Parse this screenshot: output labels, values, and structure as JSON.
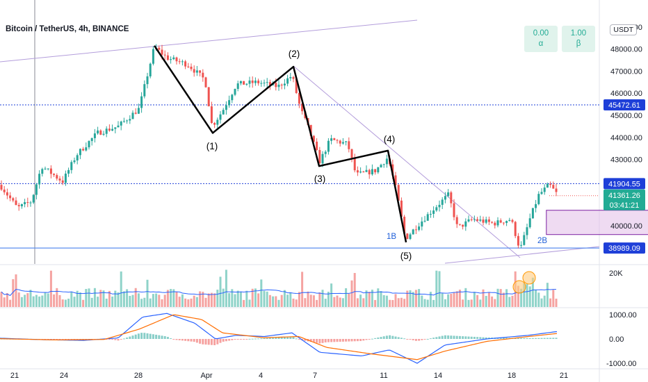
{
  "title": "Bitcoin / TetherUS, 4h, BINANCE",
  "currency": "USDT",
  "indicators": [
    {
      "value": "0.00",
      "letter": "α"
    },
    {
      "value": "1.00",
      "letter": "β"
    }
  ],
  "colors": {
    "up": "#26a69a",
    "down": "#ef5350",
    "level_line": "#1e3fd8",
    "support_line": "#5b8def",
    "macd_line": "#2962ff",
    "signal_line": "#ff6d00",
    "volume_ma": "#2962ff",
    "range_box": "#e1bee7",
    "label_price": "#1e3fd8",
    "label_current": "#22ab94"
  },
  "chart_data": [
    {
      "type": "candlestick",
      "symbol": "Bitcoin / TetherUS",
      "interval": "4h",
      "exchange": "BINANCE",
      "x_ticks": [
        "21",
        "24",
        "28",
        "Apr",
        "4",
        "7",
        "11",
        "14",
        "18",
        "21"
      ],
      "y_ticks": [
        "40000.00",
        "41000.00",
        "42000.00",
        "43000.00",
        "44000.00",
        "45000.00",
        "46000.00",
        "47000.00",
        "48000.00",
        "49000.00"
      ],
      "price_labels": [
        "45472.61",
        "41904.55",
        "38989.09"
      ],
      "current_price": "41361.26",
      "countdown": "03:41:21",
      "wave_labels": [
        "(1)",
        "(2)",
        "(3)",
        "(4)",
        "(5)"
      ],
      "pattern_labels": [
        "1B",
        "2B"
      ],
      "waves": [
        {
          "x": "Mar 28",
          "y": 48150
        },
        {
          "x": "Mar 31",
          "y": 44200
        },
        {
          "x": "Apr 5",
          "y": 47200
        },
        {
          "x": "Apr 7",
          "y": 42700
        },
        {
          "x": "Apr 11",
          "y": 43400
        },
        {
          "x": "Apr 12",
          "y": 39250
        }
      ],
      "levels": [
        45472.61,
        41904.55,
        38989.09
      ],
      "range_box": {
        "x_start": "Apr 13",
        "x_end": "Apr 19",
        "y_low": 39600,
        "y_high": 40700
      }
    },
    {
      "type": "bar",
      "name": "Volume",
      "y_ticks": [
        "20K"
      ]
    },
    {
      "type": "line",
      "name": "MACD",
      "y_ticks": [
        "1000.00",
        "0.00",
        "-1000.00"
      ]
    }
  ]
}
